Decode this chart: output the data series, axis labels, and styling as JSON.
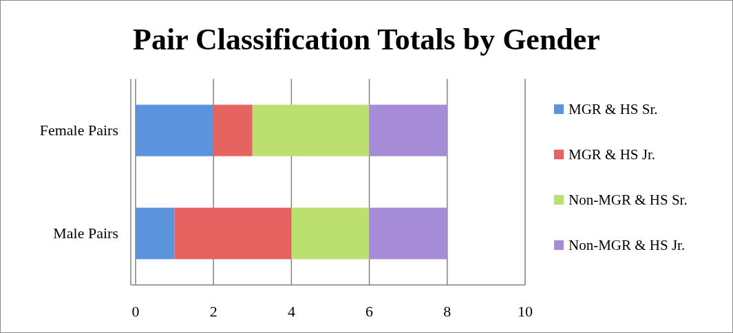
{
  "chart_data": {
    "type": "bar",
    "title": "Pair Classification Totals by Gender",
    "orientation": "horizontal",
    "stacked": true,
    "categories": [
      "Female Pairs",
      "Male Pairs"
    ],
    "series": [
      {
        "name": "MGR & HS Sr.",
        "color": "#5b93dc",
        "values": [
          2,
          1
        ]
      },
      {
        "name": "MGR & HS Jr.",
        "color": "#e56461",
        "values": [
          1,
          3
        ]
      },
      {
        "name": "Non-MGR & HS Sr.",
        "color": "#bce070",
        "values": [
          3,
          2
        ]
      },
      {
        "name": "Non-MGR & HS Jr.",
        "color": "#a68bd6",
        "values": [
          2,
          2
        ]
      }
    ],
    "xlim": [
      0,
      10
    ],
    "xticks": [
      0,
      2,
      4,
      6,
      8,
      10
    ],
    "grid": "x",
    "legend": "right"
  }
}
